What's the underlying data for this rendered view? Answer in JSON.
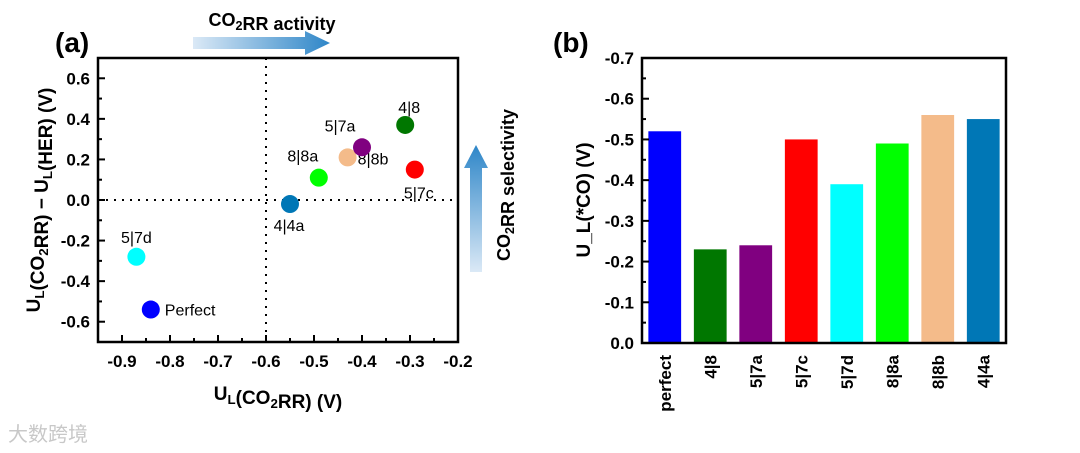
{
  "chart_data": [
    {
      "type": "scatter",
      "panel_label": "(a)",
      "xlabel": "U_L(CO2RR) (V)",
      "ylabel": "U_L(CO2RR) − U_L(HER) (V)",
      "xlim": [
        -0.95,
        -0.2
      ],
      "ylim": [
        -0.7,
        0.7
      ],
      "xticks": [
        -0.9,
        -0.8,
        -0.7,
        -0.6,
        -0.5,
        -0.4,
        -0.3,
        -0.2
      ],
      "xtick_labels": [
        "-0.9",
        "-0.8",
        "-0.7",
        "-0.6",
        "-0.5",
        "-0.4",
        "-0.3",
        "-0.2"
      ],
      "yticks": [
        0.6,
        0.4,
        0.2,
        0.0,
        -0.2,
        -0.4,
        -0.6
      ],
      "ytick_labels": [
        "0.6",
        "0.4",
        "0.2",
        "0.0",
        "-0.2",
        "-0.4",
        "-0.6"
      ],
      "reference_lines": {
        "x": -0.6,
        "y": 0.0
      },
      "points": [
        {
          "label": "Perfect",
          "x": -0.84,
          "y": -0.54,
          "color": "#0000ff"
        },
        {
          "label": "5|7d",
          "x": -0.87,
          "y": -0.28,
          "color": "#00ffff"
        },
        {
          "label": "4|4a",
          "x": -0.55,
          "y": -0.02,
          "color": "#0077b6"
        },
        {
          "label": "8|8a",
          "x": -0.49,
          "y": 0.11,
          "color": "#00ff00"
        },
        {
          "label": "8|8b",
          "x": -0.43,
          "y": 0.21,
          "color": "#f4bb8a"
        },
        {
          "label": "5|7a",
          "x": -0.4,
          "y": 0.26,
          "color": "#800080"
        },
        {
          "label": "4|8",
          "x": -0.31,
          "y": 0.37,
          "color": "#007700"
        },
        {
          "label": "5|7c",
          "x": -0.29,
          "y": 0.15,
          "color": "#ff0000"
        }
      ],
      "annotations": {
        "activity": "CO2RR activity",
        "selectivity": "CO2RR selectivity"
      }
    },
    {
      "type": "bar",
      "panel_label": "(b)",
      "ylabel": "U_L(*CO) (V)",
      "ylim": [
        0,
        -0.7
      ],
      "yticks": [
        0,
        -0.1,
        -0.2,
        -0.3,
        -0.4,
        -0.5,
        -0.6,
        -0.7
      ],
      "ytick_labels": [
        "0.0",
        "-0.1",
        "-0.2",
        "-0.3",
        "-0.4",
        "-0.5",
        "-0.6",
        "-0.7"
      ],
      "categories": [
        "perfect",
        "4|8",
        "5|7a",
        "5|7c",
        "5|7d",
        "8|8a",
        "8|8b",
        "4|4a"
      ],
      "values": [
        -0.52,
        -0.23,
        -0.24,
        -0.5,
        -0.39,
        -0.49,
        -0.56,
        -0.55
      ],
      "colors": [
        "#0000ff",
        "#007700",
        "#800080",
        "#ff0000",
        "#00ffff",
        "#00ff00",
        "#f4bb8a",
        "#0077b6"
      ]
    }
  ],
  "watermark": "大数跨境"
}
